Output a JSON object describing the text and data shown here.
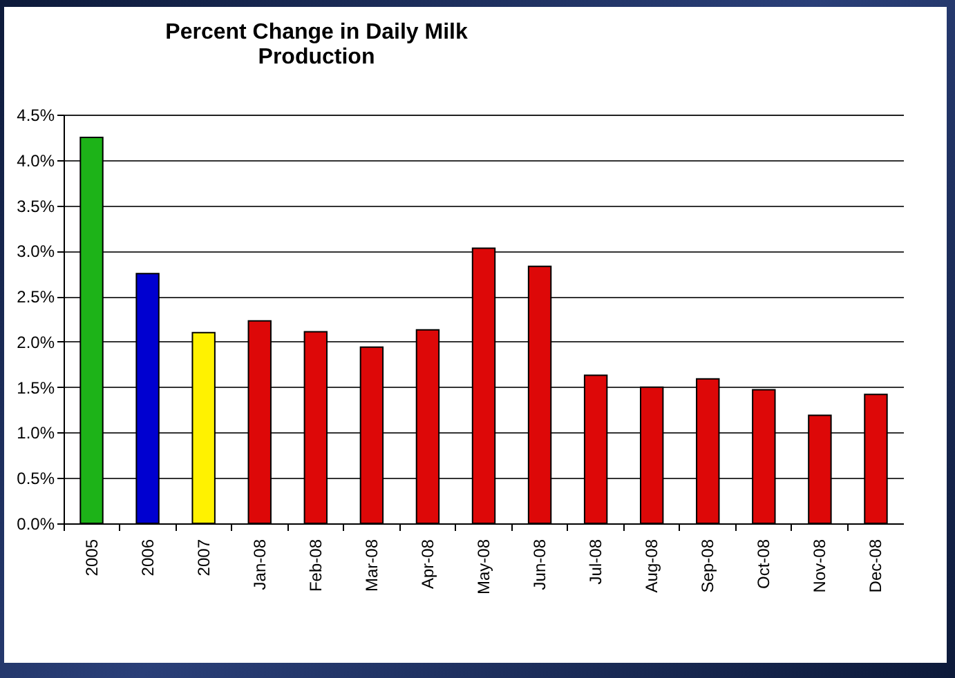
{
  "chart_data": {
    "type": "bar",
    "title": [
      "Percent Change in Daily Milk",
      "Production"
    ],
    "categories": [
      "2005",
      "2006",
      "2007",
      "Jan-08",
      "Feb-08",
      "Mar-08",
      "Apr-08",
      "May-08",
      "Jun-08",
      "Jul-08",
      "Aug-08",
      "Sep-08",
      "Oct-08",
      "Nov-08",
      "Dec-08"
    ],
    "values": [
      4.25,
      2.75,
      2.1,
      2.23,
      2.11,
      1.94,
      2.13,
      3.03,
      2.83,
      1.63,
      1.5,
      1.59,
      1.47,
      1.19,
      1.42
    ],
    "colors": [
      "#1db318",
      "#0000d0",
      "#fff200",
      "#dd0808",
      "#dd0808",
      "#dd0808",
      "#dd0808",
      "#dd0808",
      "#dd0808",
      "#dd0808",
      "#dd0808",
      "#dd0808",
      "#dd0808",
      "#dd0808",
      "#dd0808"
    ],
    "ylim": [
      0,
      4.5
    ],
    "yticks": [
      {
        "value": 0,
        "label": "0.0%"
      },
      {
        "value": 0.5,
        "label": "0.5%"
      },
      {
        "value": 1,
        "label": "1.0%"
      },
      {
        "value": 1.5,
        "label": "1.5%"
      },
      {
        "value": 2,
        "label": "2.0%"
      },
      {
        "value": 2.5,
        "label": "2.5%"
      },
      {
        "value": 3,
        "label": "3.0%"
      },
      {
        "value": 3.5,
        "label": "3.5%"
      },
      {
        "value": 4,
        "label": "4.0%"
      },
      {
        "value": 4.5,
        "label": "4.5%"
      }
    ],
    "grid": "y"
  }
}
